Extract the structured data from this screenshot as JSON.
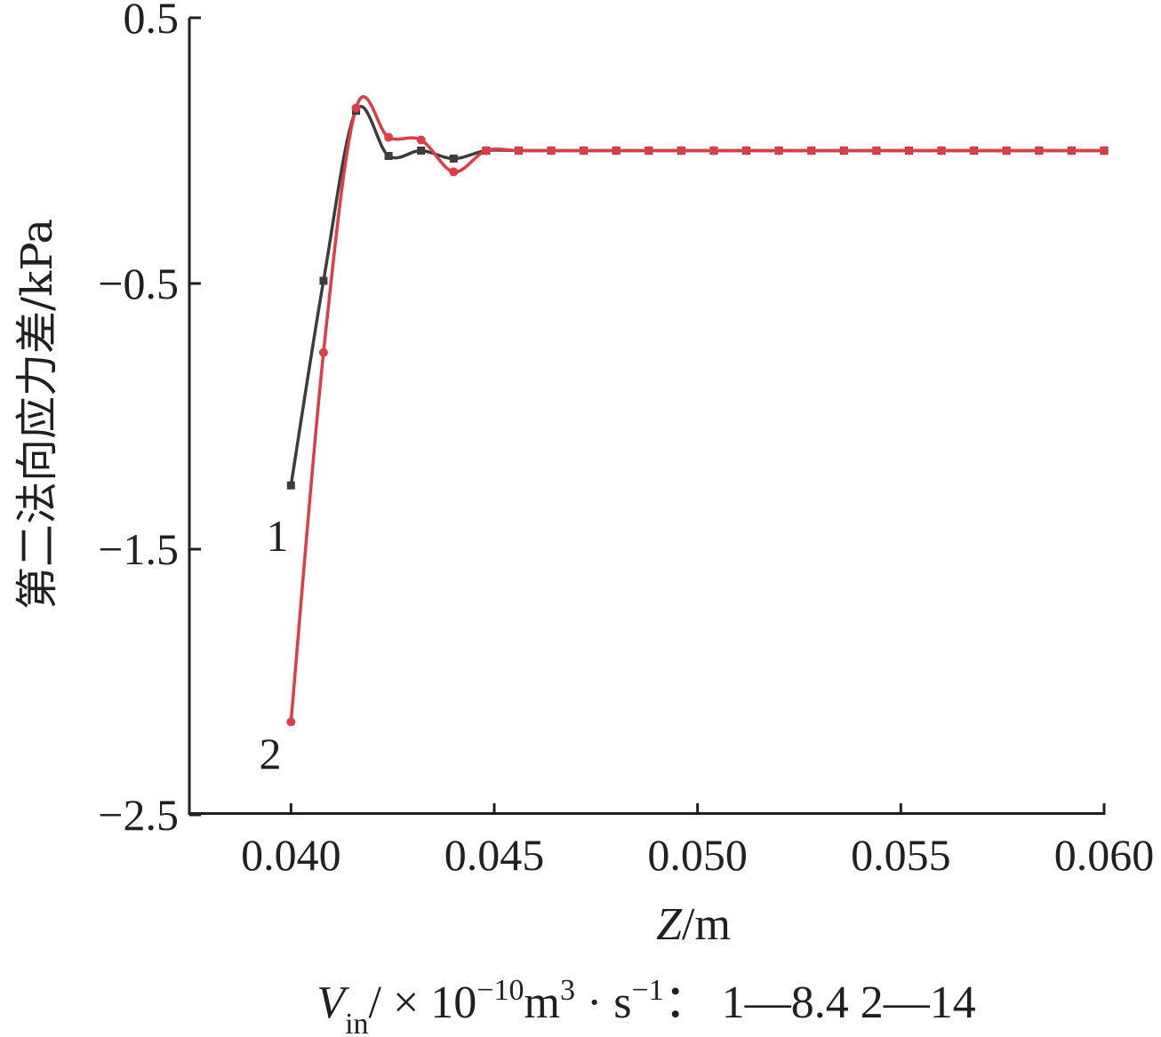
{
  "chart_data": {
    "type": "line",
    "xlabel": "Z/m",
    "ylabel": "第二法向应力差/kPa",
    "xlim": [
      0.0375,
      0.06
    ],
    "ylim": [
      -2.5,
      0.5
    ],
    "x_ticks": [
      "0.040",
      "0.045",
      "0.050",
      "0.055",
      "0.060"
    ],
    "y_ticks": [
      "0.5",
      "−0.5",
      "−1.5",
      "−2.5"
    ],
    "caption": {
      "var_main": "V",
      "var_sub": "in",
      "unit_pre": "/ × 10",
      "exp_10": "−10",
      "unit_m": "m",
      "exp_m": "3",
      "unit_s": " · s",
      "exp_s": "−1",
      "legend_text": "：  1—8.4    2—14"
    },
    "series": [
      {
        "name": "1",
        "color": "#3d3b3c",
        "marker": "square",
        "x": [
          0.04,
          0.0408,
          0.0416,
          0.0424,
          0.0432,
          0.044,
          0.0448,
          0.0456,
          0.0464,
          0.0472,
          0.048,
          0.0488,
          0.0496,
          0.0504,
          0.0512,
          0.052,
          0.0528,
          0.0536,
          0.0544,
          0.0552,
          0.056,
          0.0568,
          0.0576,
          0.0584,
          0.0592,
          0.06
        ],
        "y": [
          -1.26,
          -0.49,
          0.15,
          -0.02,
          0.0,
          -0.03,
          0.0,
          0.0,
          0.0,
          0.0,
          0.0,
          0.0,
          0.0,
          0.0,
          0.0,
          0.0,
          0.0,
          0.0,
          0.0,
          0.0,
          0.0,
          0.0,
          0.0,
          0.0,
          0.0,
          0.0
        ]
      },
      {
        "name": "2",
        "color": "#e03c48",
        "marker": "circle",
        "x": [
          0.04,
          0.0408,
          0.0416,
          0.0424,
          0.0432,
          0.044,
          0.0448,
          0.0456,
          0.0464,
          0.0472,
          0.048,
          0.0488,
          0.0496,
          0.0504,
          0.0512,
          0.052,
          0.0528,
          0.0536,
          0.0544,
          0.0552,
          0.056,
          0.0568,
          0.0576,
          0.0584,
          0.0592,
          0.06
        ],
        "y": [
          -2.15,
          -0.76,
          0.16,
          0.05,
          0.04,
          -0.08,
          0.0,
          0.0,
          0.0,
          0.0,
          0.0,
          0.0,
          0.0,
          0.0,
          0.0,
          0.0,
          0.0,
          0.0,
          0.0,
          0.0,
          0.0,
          0.0,
          0.0,
          0.0,
          0.0,
          0.0
        ]
      }
    ]
  }
}
